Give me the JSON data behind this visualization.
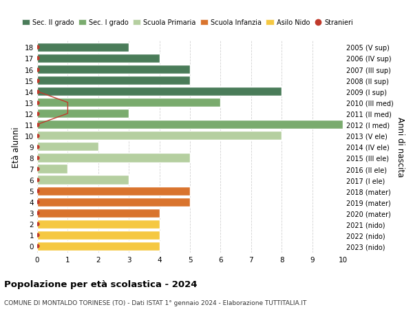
{
  "ages": [
    18,
    17,
    16,
    15,
    14,
    13,
    12,
    11,
    10,
    9,
    8,
    7,
    6,
    5,
    4,
    3,
    2,
    1,
    0
  ],
  "years": [
    "2005 (V sup)",
    "2006 (IV sup)",
    "2007 (III sup)",
    "2008 (II sup)",
    "2009 (I sup)",
    "2010 (III med)",
    "2011 (II med)",
    "2012 (I med)",
    "2013 (V ele)",
    "2014 (IV ele)",
    "2015 (III ele)",
    "2016 (II ele)",
    "2017 (I ele)",
    "2018 (mater)",
    "2019 (mater)",
    "2020 (mater)",
    "2021 (nido)",
    "2022 (nido)",
    "2023 (nido)"
  ],
  "values": [
    3,
    4,
    5,
    5,
    8,
    6,
    3,
    10,
    8,
    2,
    5,
    1,
    3,
    5,
    5,
    4,
    4,
    4,
    4
  ],
  "bar_colors": [
    "#4a7c59",
    "#4a7c59",
    "#4a7c59",
    "#4a7c59",
    "#4a7c59",
    "#7aab6e",
    "#7aab6e",
    "#7aab6e",
    "#b5cfa0",
    "#b5cfa0",
    "#b5cfa0",
    "#b5cfa0",
    "#b5cfa0",
    "#d9742e",
    "#d9742e",
    "#d9742e",
    "#f5c842",
    "#f5c842",
    "#f5c842"
  ],
  "stranieri_line_ages": [
    14,
    13,
    12,
    11
  ],
  "stranieri_line_x": [
    0,
    1,
    1,
    0
  ],
  "legend_labels": [
    "Sec. II grado",
    "Sec. I grado",
    "Scuola Primaria",
    "Scuola Infanzia",
    "Asilo Nido",
    "Stranieri"
  ],
  "legend_colors": [
    "#4a7c59",
    "#7aab6e",
    "#b5cfa0",
    "#d9742e",
    "#f5c842",
    "#c0392b"
  ],
  "title": "Popolazione per età scolastica - 2024",
  "subtitle": "COMUNE DI MONTALDO TORINESE (TO) - Dati ISTAT 1° gennaio 2024 - Elaborazione TUTTITALIA.IT",
  "ylabel": "Età alunni",
  "ylabel2": "Anni di nascita",
  "xlim": [
    0,
    10
  ],
  "background_color": "#ffffff",
  "grid_color": "#cccccc",
  "bar_edge_color": "#ffffff",
  "stranieri_dot_color": "#c0392b",
  "stranieri_line_color": "#c0392b"
}
